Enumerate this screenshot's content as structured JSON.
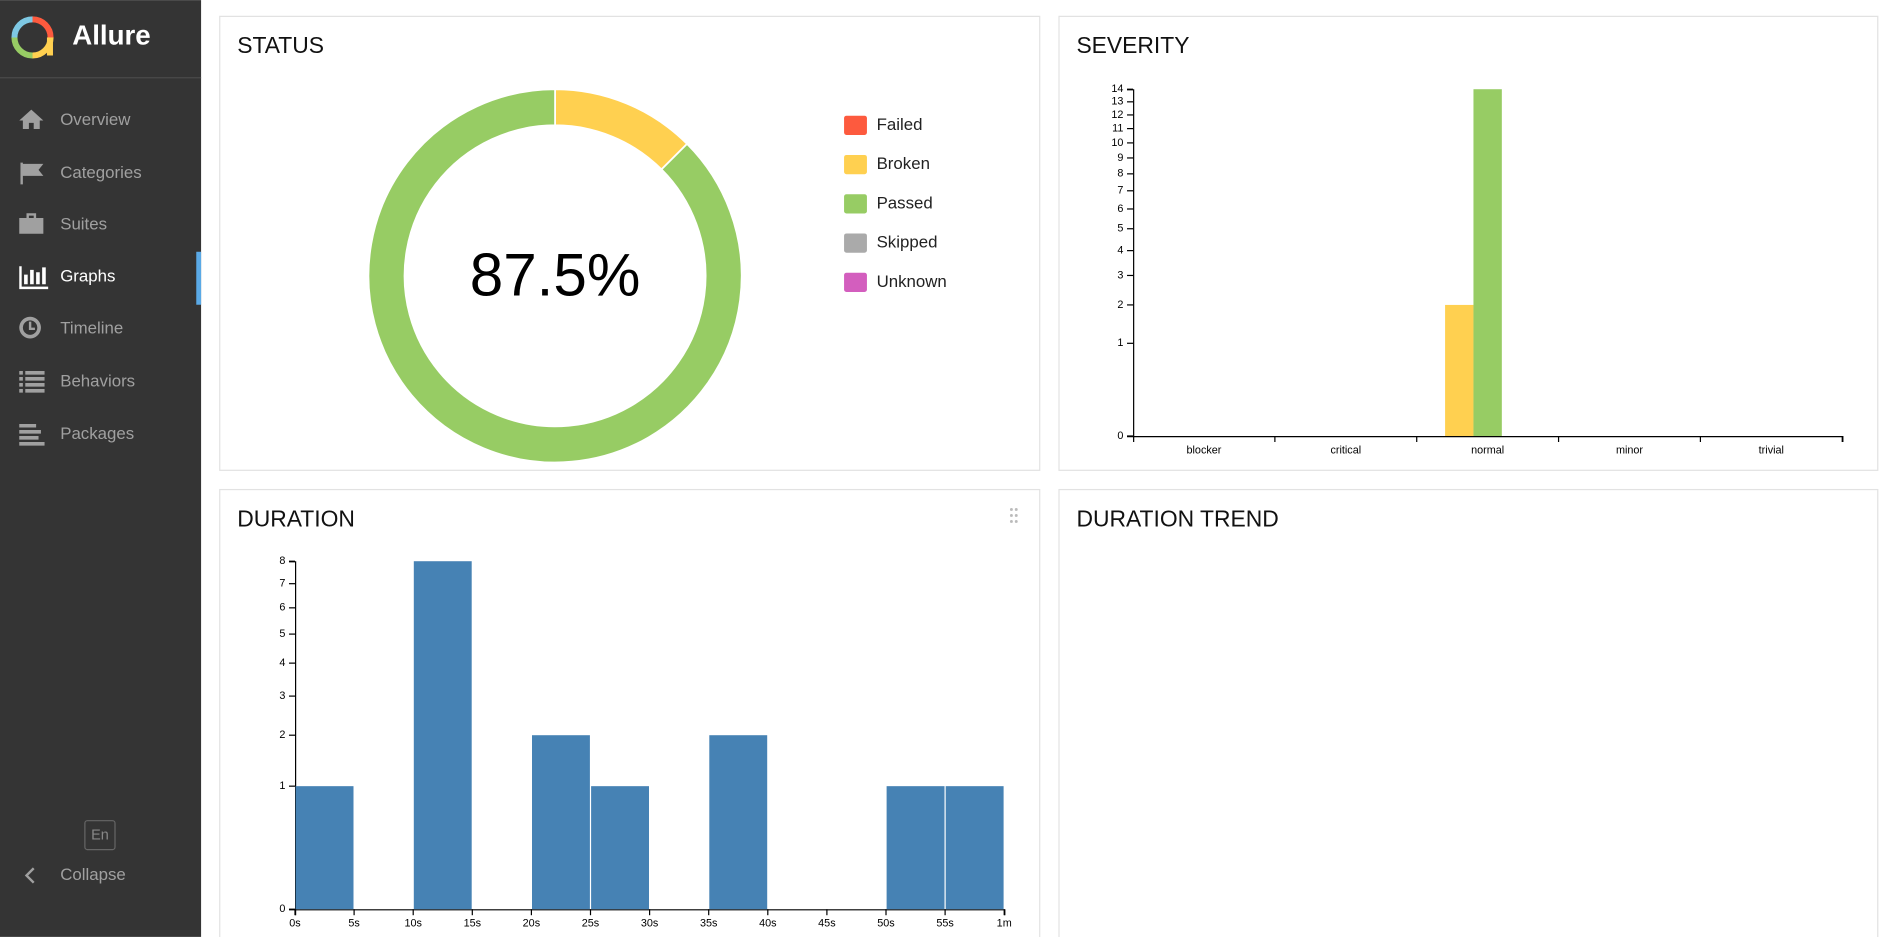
{
  "app": {
    "name": "Allure"
  },
  "sidebar": {
    "items": [
      "Overview",
      "Categories",
      "Suites",
      "Graphs",
      "Timeline",
      "Behaviors",
      "Packages"
    ],
    "active": 3,
    "language": "En",
    "collapse": "Collapse"
  },
  "empty_panel": {
    "title": "DURATION TREND"
  },
  "chart_data": [
    {
      "type": "pie",
      "title": "STATUS",
      "donut": true,
      "center_label": "87.5%",
      "categories": [
        "Failed",
        "Broken",
        "Passed",
        "Skipped",
        "Unknown"
      ],
      "values": [
        0,
        2,
        14,
        0,
        0
      ],
      "colors": [
        "#fd5a3e",
        "#ffd050",
        "#97cc64",
        "#aaaaaa",
        "#d35ebe"
      ]
    },
    {
      "type": "bar",
      "title": "SEVERITY",
      "scale": "sqrt",
      "categories": [
        "blocker",
        "critical",
        "normal",
        "minor",
        "trivial"
      ],
      "series": [
        {
          "name": "Failed",
          "color": "#fd5a3e",
          "values": [
            0,
            0,
            0,
            0,
            0
          ]
        },
        {
          "name": "Broken",
          "color": "#ffd050",
          "values": [
            0,
            0,
            2,
            0,
            0
          ]
        },
        {
          "name": "Passed",
          "color": "#97cc64",
          "values": [
            0,
            0,
            14,
            0,
            0
          ]
        },
        {
          "name": "Skipped",
          "color": "#aaaaaa",
          "values": [
            0,
            0,
            0,
            0,
            0
          ]
        },
        {
          "name": "Unknown",
          "color": "#d35ebe",
          "values": [
            0,
            0,
            0,
            0,
            0
          ]
        }
      ],
      "ylim": [
        0,
        14
      ],
      "yticks": [
        0,
        1,
        2,
        3,
        4,
        5,
        6,
        7,
        8,
        9,
        10,
        11,
        12,
        13,
        14
      ]
    },
    {
      "type": "histogram",
      "title": "DURATION",
      "scale": "sqrt",
      "color": "#4682b4",
      "bins": [
        0,
        5,
        10,
        15,
        20,
        25,
        30,
        35,
        40,
        45,
        50,
        55,
        60
      ],
      "values": [
        1,
        0,
        8,
        0,
        2,
        1,
        0,
        2,
        0,
        0,
        1,
        1
      ],
      "xlim": [
        0,
        60
      ],
      "xticks": [
        {
          "value": 0,
          "label": "0s"
        },
        {
          "value": 5,
          "label": "5s"
        },
        {
          "value": 10,
          "label": "10s"
        },
        {
          "value": 15,
          "label": "15s"
        },
        {
          "value": 20,
          "label": "20s"
        },
        {
          "value": 25,
          "label": "25s"
        },
        {
          "value": 30,
          "label": "30s"
        },
        {
          "value": 35,
          "label": "35s"
        },
        {
          "value": 40,
          "label": "40s"
        },
        {
          "value": 45,
          "label": "45s"
        },
        {
          "value": 50,
          "label": "50s"
        },
        {
          "value": 55,
          "label": "55s"
        },
        {
          "value": 60,
          "label": "1m"
        }
      ],
      "ylim": [
        0,
        8
      ],
      "yticks": [
        0,
        1,
        2,
        3,
        4,
        5,
        6,
        7,
        8
      ]
    }
  ]
}
